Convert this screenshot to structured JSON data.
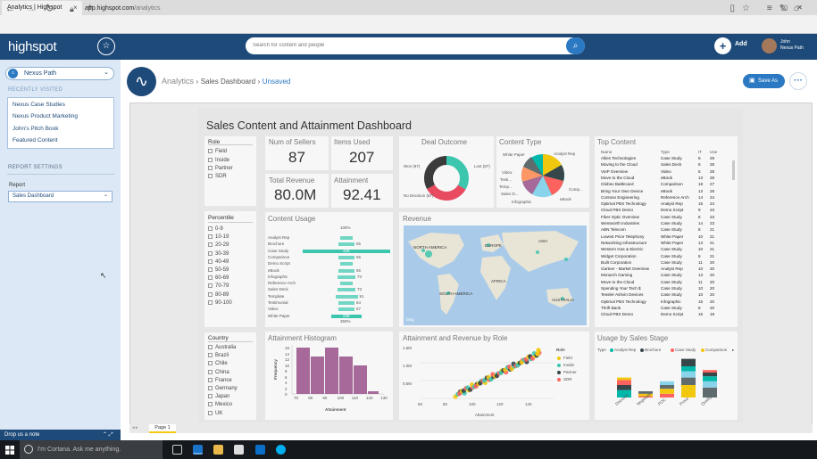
{
  "browser": {
    "tab_title": "Analytics | Highspot",
    "tab_close": "×",
    "new_tab": "+",
    "url_host": "app.highspot.com",
    "url_path": "/analytics",
    "window_controls": "–▢✕"
  },
  "header": {
    "logo": "highspot",
    "search_placeholder": "Search for content and people",
    "add_label": "Add",
    "user_first": "John",
    "user_space": "Nexus Path"
  },
  "sidebar": {
    "space_name": "Nexus Path",
    "recently_visited_title": "RECENTLY VISITED",
    "recent": [
      "Nexus Case Studies",
      "Nexus Product Marketing",
      "John's Pitch Book",
      "Featured Content"
    ],
    "report_settings_title": "REPORT SETTINGS",
    "report_label": "Report",
    "report_value": "Sales Dashboard",
    "drop_note": "Drop us a note"
  },
  "analytics": {
    "title": "Analytics",
    "sep": "›",
    "dashboard": "Sales Dashboard",
    "status": "Unsaved",
    "save_as": "Save As"
  },
  "report": {
    "title": "Sales Content and Attainment Dashboard",
    "page_tab": "Page 1",
    "role": {
      "title": "Role",
      "items": [
        "Field",
        "Inside",
        "Partner",
        "SDR"
      ]
    },
    "percentile": {
      "title": "Percentile",
      "items": [
        "0-9",
        "10-19",
        "20-29",
        "30-39",
        "40-49",
        "50-59",
        "60-69",
        "70-79",
        "80-89",
        "90-100"
      ]
    },
    "country": {
      "title": "Country",
      "items": [
        "Australia",
        "Brazil",
        "Chile",
        "China",
        "France",
        "Germany",
        "Japan",
        "Mexico",
        "UK"
      ]
    },
    "kpis": [
      {
        "label": "Num of Sellers",
        "value": "87"
      },
      {
        "label": "Items Used",
        "value": "207"
      },
      {
        "label": "Total Revenue",
        "value": "80.0M"
      },
      {
        "label": "Attainment",
        "value": "92.41"
      }
    ],
    "deal_outcome": {
      "title": "Deal Outcome",
      "labels": {
        "won": "Won (87)",
        "lost": "Lost (87)",
        "nodecision": "No Decision (87)"
      },
      "colors": {
        "won": "#3cc6ae",
        "lost": "#e84a5f",
        "nodecision": "#3b3b3b"
      }
    },
    "content_type": {
      "title": "Content Type",
      "labels": [
        "White Paper",
        "Analyst Rep",
        "Video",
        "Testi...",
        "Temp...",
        "Sales D...",
        "Comp...",
        "eBook",
        "Infographic"
      ]
    },
    "top_content": {
      "title": "Top Content",
      "headers": [
        "Name",
        "Type",
        "IT",
        "Use"
      ],
      "rows": [
        [
          "Allies Technologies",
          "Case Study",
          "8",
          "29"
        ],
        [
          "Moving to the Cloud",
          "Sales Deck",
          "8",
          "28"
        ],
        [
          "VoIP Overview",
          "Video",
          "5",
          "28"
        ],
        [
          "Move to the Cloud",
          "eBook",
          "13",
          "28"
        ],
        [
          "Globex Battlecard",
          "Comparison",
          "18",
          "27"
        ],
        [
          "Bring Your Own Device",
          "eBook",
          "13",
          "25"
        ],
        [
          "Contoso Engineering",
          "Reference Arch",
          "14",
          "24"
        ],
        [
          "Optimal PBX Technology",
          "Analyst Rep",
          "15",
          "24"
        ],
        [
          "Cloud PBX Demo",
          "Demo Script",
          "9",
          "23"
        ],
        [
          "Fiber Optic Overview",
          "Case Study",
          "8",
          "23"
        ],
        [
          "Wentworth Industries",
          "Case Study",
          "14",
          "23"
        ],
        [
          "ABN Telecom",
          "Case Study",
          "8",
          "21"
        ],
        [
          "Lowest Price Telephony",
          "White Paper",
          "10",
          "21"
        ],
        [
          "Networking Infrastructure",
          "White Paper",
          "13",
          "21"
        ],
        [
          "Western Gas & Electric",
          "Case Study",
          "10",
          "21"
        ],
        [
          "Widget Corporation",
          "Case Study",
          "8",
          "21"
        ],
        [
          "Built Corporation",
          "Case Study",
          "11",
          "20"
        ],
        [
          "Gartner - Market Overview",
          "Analyst Rep",
          "10",
          "20"
        ],
        [
          "Monarch Gaming",
          "Case Study",
          "13",
          "20"
        ],
        [
          "Move to the Cloud",
          "Case Study",
          "11",
          "20"
        ],
        [
          "Spending Your Tech $",
          "Case Study",
          "10",
          "20"
        ],
        [
          "Tessler-Ashvin Devices",
          "Case Study",
          "10",
          "20"
        ],
        [
          "Optimal PBX Technology",
          "Infographic",
          "15",
          "20"
        ],
        [
          "Thrift Bank",
          "Case Study",
          "8",
          "20"
        ],
        [
          "Cloud PBX Demo",
          "Demo Script",
          "15",
          "19"
        ]
      ]
    },
    "content_usage": {
      "title": "Content Usage",
      "top_pct": "100%",
      "bottom_pct": "350%",
      "rows": [
        {
          "label": "Analyst Rep",
          "value": ""
        },
        {
          "label": "Brochure",
          "value": "65"
        },
        {
          "label": "Case Study",
          "value": "428"
        },
        {
          "label": "Comparison",
          "value": "65"
        },
        {
          "label": "Demo Script",
          "value": ""
        },
        {
          "label": "eBook",
          "value": "65"
        },
        {
          "label": "Infographic",
          "value": "73"
        },
        {
          "label": "Reference Arch",
          "value": ""
        },
        {
          "label": "Sales Deck",
          "value": "73"
        },
        {
          "label": "Template",
          "value": "91"
        },
        {
          "label": "Testimonial",
          "value": "64"
        },
        {
          "label": "Video",
          "value": "67"
        },
        {
          "label": "White Paper",
          "value": "228"
        }
      ]
    },
    "revenue": {
      "title": "Revenue",
      "regions": [
        "NORTH AMERICA",
        "EUROPE",
        "ASIA",
        "AFRICA",
        "SOUTH AMERICA",
        "AUSTRALIA"
      ],
      "footer": "bing"
    },
    "histogram": {
      "title": "Attainment Histogram",
      "xlabel": "Attainment",
      "ylabel": "Frequency",
      "x_ticks": [
        "70",
        "80",
        "90",
        "100",
        "110",
        "120",
        "130"
      ],
      "y_ticks": [
        "0",
        "2",
        "4",
        "6",
        "8",
        "10",
        "12",
        "14",
        "16"
      ]
    },
    "att_rev": {
      "title": "Attainment and Revenue by Role",
      "xlabel": "Attainment",
      "y_ticks": [
        "0.5M",
        "1.0M",
        "1.5M"
      ],
      "x_ticks": [
        "60",
        "80",
        "100",
        "120",
        "140"
      ],
      "legend_title": "Role",
      "legend": [
        {
          "name": "Field",
          "color": "#f2c811"
        },
        {
          "name": "Inside",
          "color": "#3cc6ae"
        },
        {
          "name": "Partner",
          "color": "#374649"
        },
        {
          "name": "SDR",
          "color": "#fd625e"
        }
      ]
    },
    "usage_stage": {
      "title": "Usage by Sales Stage",
      "legend_title": "Type",
      "legend": [
        {
          "name": "Analyst Rep",
          "color": "#01b8aa"
        },
        {
          "name": "Brochure",
          "color": "#374649"
        },
        {
          "name": "Case Study",
          "color": "#fd625e"
        },
        {
          "name": "Comparison",
          "color": "#f2c80f"
        }
      ],
      "categories": [
        "Discover",
        "Negotiate",
        "POC",
        "Prove",
        "Qualify"
      ]
    }
  },
  "taskbar": {
    "cortana": "I'm Cortana. Ask me anything."
  }
}
